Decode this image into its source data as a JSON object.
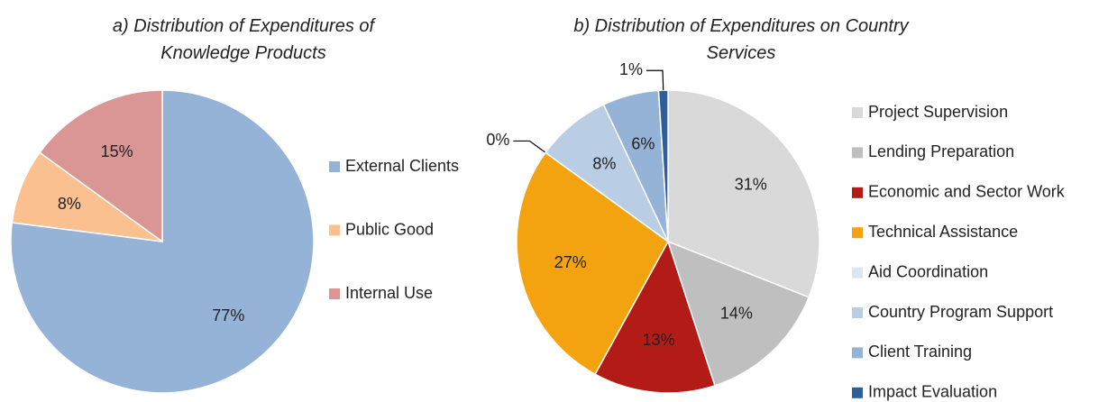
{
  "chart_data": [
    {
      "type": "pie",
      "title": "a) Distribution of Expenditures of Knowledge Products",
      "categories": [
        "External Clients",
        "Public Good",
        "Internal Use"
      ],
      "values": [
        77,
        8,
        15
      ],
      "value_labels": [
        "77%",
        "8%",
        "15%"
      ],
      "colors": [
        "#95b3d7",
        "#fac090",
        "#d99694"
      ],
      "legend": "right"
    },
    {
      "type": "pie",
      "title": "b) Distribution of Expenditures on Country Services",
      "categories": [
        "Project Supervision",
        "Lending Preparation",
        "Economic and Sector Work",
        "Technical Assistance",
        "Aid Coordination",
        "Country Program Support",
        "Client Training",
        "Impact Evaluation"
      ],
      "values": [
        31,
        14,
        13,
        27,
        0,
        8,
        6,
        1
      ],
      "value_labels": [
        "31%",
        "14%",
        "13%",
        "27%",
        "0%",
        "8%",
        "6%",
        "1%"
      ],
      "colors": [
        "#d9d9d9",
        "#bfbfbf",
        "#b31b17",
        "#f3a30f",
        "#dce6f2",
        "#b9cde5",
        "#95b3d7",
        "#2f5f98"
      ],
      "legend": "right"
    }
  ]
}
